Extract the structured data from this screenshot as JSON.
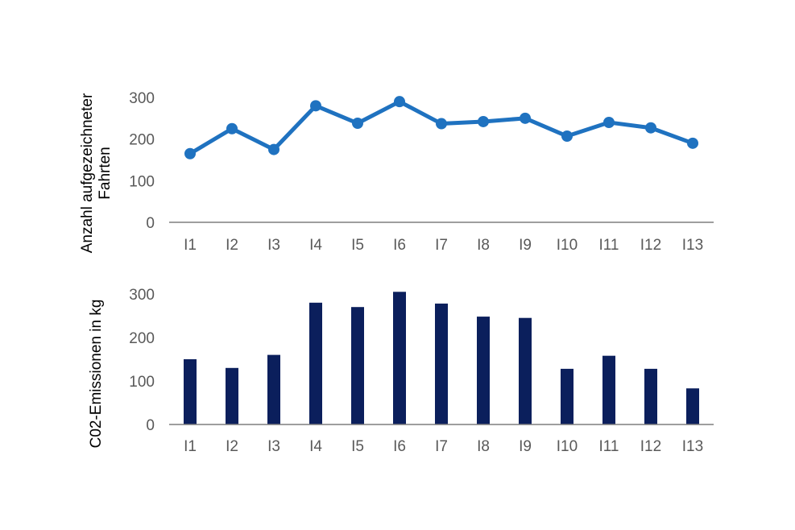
{
  "chart_data": [
    {
      "type": "line",
      "categories": [
        "I1",
        "I2",
        "I3",
        "I4",
        "I5",
        "I6",
        "I7",
        "I8",
        "I9",
        "I10",
        "I11",
        "I12",
        "I13"
      ],
      "values": [
        165,
        225,
        175,
        280,
        238,
        290,
        237,
        242,
        250,
        207,
        240,
        227,
        190
      ],
      "ylabel_lines": [
        "Anzahl aufgezeichneter",
        "Fahrten"
      ],
      "yticks": [
        0,
        100,
        200,
        300
      ],
      "ylim": [
        0,
        300
      ],
      "grid": false,
      "color": "#1f72c0"
    },
    {
      "type": "bar",
      "categories": [
        "I1",
        "I2",
        "I3",
        "I4",
        "I5",
        "I6",
        "I7",
        "I8",
        "I9",
        "I10",
        "I11",
        "I12",
        "I13"
      ],
      "values": [
        150,
        130,
        160,
        280,
        270,
        305,
        278,
        248,
        245,
        128,
        158,
        128,
        83
      ],
      "ylabel": "C02-Emissionen in kg",
      "yticks": [
        0,
        100,
        200,
        300
      ],
      "ylim": [
        0,
        300
      ],
      "grid": false,
      "color": "#0b1f5c"
    }
  ]
}
